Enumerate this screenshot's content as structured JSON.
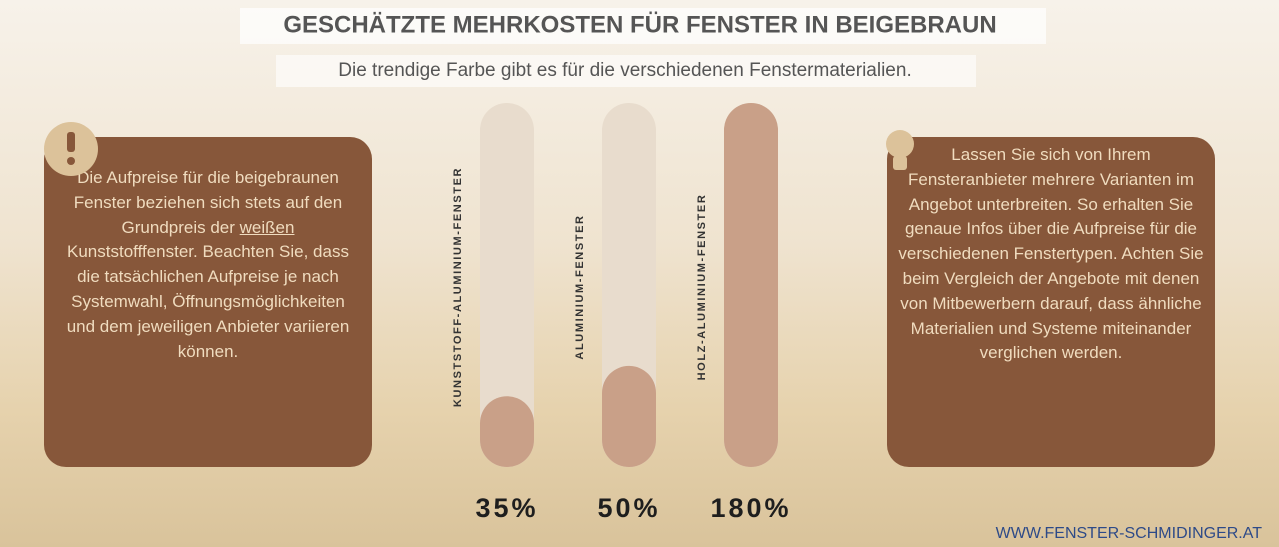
{
  "chart_data": {
    "type": "bar",
    "title": "GESCHÄTZTE MEHRKOSTEN FÜR FENSTER IN BEIGEBRAUN",
    "subtitle": "Die trendige Farbe gibt es für die verschiedenen Fenstermaterialien.",
    "categories": [
      "KUNSTSTOFF-ALUMINIUM-FENSTER",
      "ALUMINIUM-FENSTER",
      "HOLZ-ALUMINIUM-FENSTER"
    ],
    "values": [
      35,
      50,
      180
    ],
    "value_labels": [
      "35%",
      "50%",
      "180%"
    ],
    "color": "#c9a088",
    "track_color": "#e8dccd"
  },
  "left_note": {
    "before": "Die Aufpreise für die beigebraunen Fenster beziehen sich stets auf den Grundpreis der",
    "emphasis": "weißen",
    "after": "Kunststofffenster. Beachten Sie, dass die tatsächlichen Aufpreise je nach Systemwahl, Öffnungsmöglichkeiten und dem jeweiligen Anbieter variieren können."
  },
  "right_note": "Lassen Sie sich von Ihrem Fensteranbieter mehrere Varianten im Angebot unterbreiten. So erhalten Sie genaue Infos über die Aufpreise für die verschiedenen Fenstertypen. Achten Sie beim Vergleich der Angebote mit denen von Mitbewerbern darauf, dass ähnliche Materialien und Systeme miteinander verglichen werden.",
  "footer": "WWW.FENSTER-SCHMIDINGER.AT"
}
